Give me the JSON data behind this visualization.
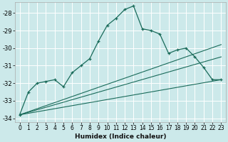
{
  "title": "",
  "xlabel": "Humidex (Indice chaleur)",
  "bg_color": "#cce9ea",
  "line_color": "#1a6b5a",
  "xlim": [
    -0.5,
    23.5
  ],
  "ylim": [
    -34.2,
    -27.4
  ],
  "yticks": [
    -34,
    -33,
    -32,
    -31,
    -30,
    -29,
    -28
  ],
  "xticks": [
    0,
    1,
    2,
    3,
    4,
    5,
    6,
    7,
    8,
    9,
    10,
    11,
    12,
    13,
    14,
    15,
    16,
    17,
    18,
    19,
    20,
    21,
    22,
    23
  ],
  "main_x": [
    0,
    1,
    2,
    3,
    4,
    5,
    6,
    7,
    8,
    9,
    10,
    11,
    12,
    13,
    14,
    15,
    16,
    17,
    18,
    19,
    20,
    21,
    22,
    23
  ],
  "main_y": [
    -33.8,
    -32.5,
    -32.0,
    -31.9,
    -31.8,
    -32.2,
    -31.4,
    -31.0,
    -30.6,
    -29.6,
    -28.7,
    -28.3,
    -27.8,
    -27.6,
    -28.9,
    -29.0,
    -29.2,
    -30.3,
    -30.1,
    -30.0,
    -30.5,
    -31.1,
    -31.8,
    -31.8
  ],
  "ref_lines": [
    {
      "x": [
        0,
        23
      ],
      "y": [
        -33.8,
        -29.8
      ]
    },
    {
      "x": [
        0,
        23
      ],
      "y": [
        -33.8,
        -30.5
      ]
    },
    {
      "x": [
        0,
        23
      ],
      "y": [
        -33.8,
        -31.8
      ]
    }
  ]
}
